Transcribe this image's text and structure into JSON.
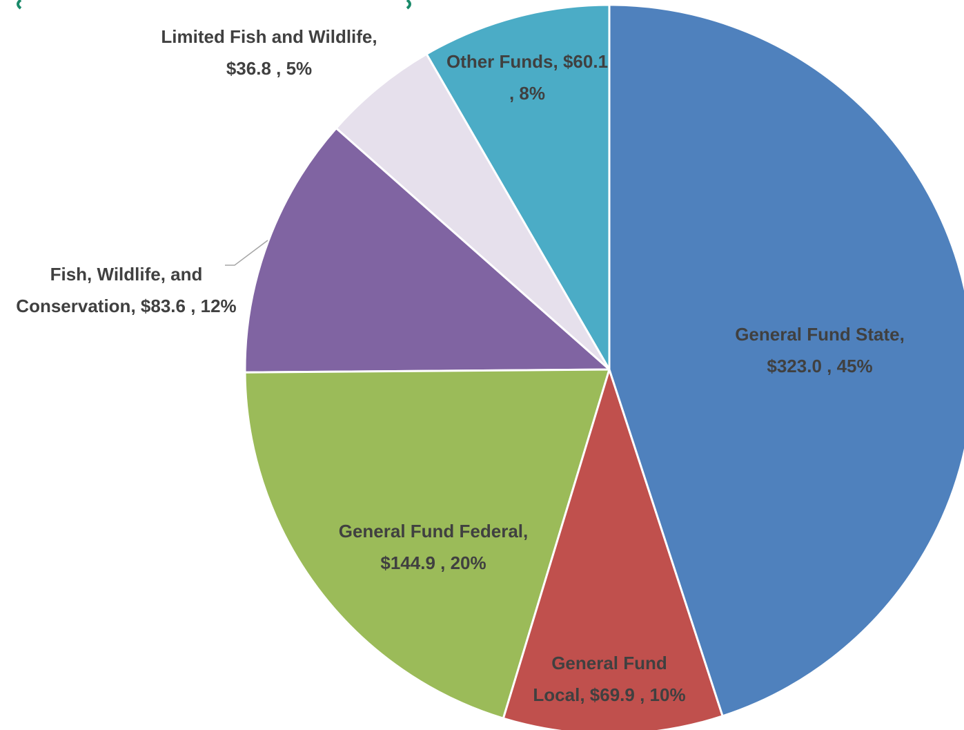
{
  "chart_data": {
    "type": "pie",
    "categories": [
      "General Fund State,",
      "General Fund Local,",
      "General Fund Federal,",
      "Fish, Wildlife, and Conservation,",
      "Limited Fish and Wildlife,",
      "Other Funds,"
    ],
    "values": [
      323.0,
      69.9,
      144.9,
      83.6,
      36.8,
      60.1
    ],
    "value_labels": [
      "$323.0 , 45%",
      "$69.9 , 10%",
      "$144.9 , 20%",
      "$83.6 , 12%",
      "$36.8 , 5%",
      "$60.1 , 8%"
    ],
    "colors": [
      "#4f81bd",
      "#c0504d",
      "#9bbb59",
      "#8064a2",
      "#e6e0ec",
      "#4bacc6"
    ]
  }
}
